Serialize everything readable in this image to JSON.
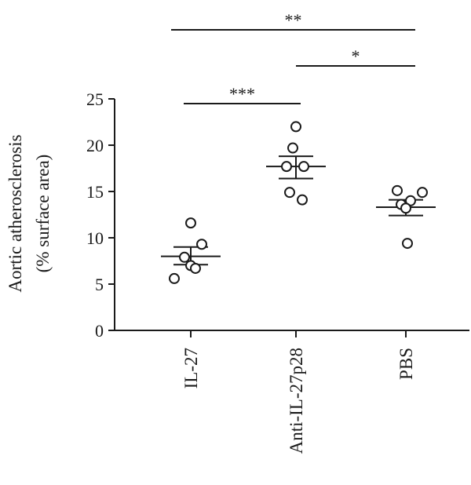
{
  "chart_data": {
    "type": "scatter",
    "ylabel_line1": "Aortic atherosclerosis",
    "ylabel_line2": "(% surface area)",
    "ylim": [
      0,
      25
    ],
    "yticks": [
      "0",
      "5",
      "10",
      "15",
      "20",
      "25"
    ],
    "categories": [
      "IL-27",
      "Anti-IL-27p28",
      "PBS"
    ],
    "groups": [
      {
        "category": "IL-27",
        "points": [
          11.6,
          9.3,
          7.9,
          7.0,
          6.7,
          5.6
        ],
        "mean": 8.0,
        "sem_low": 7.1,
        "sem_high": 9.0
      },
      {
        "category": "Anti-IL-27p28",
        "points": [
          22.0,
          19.7,
          17.7,
          17.7,
          14.9,
          14.1
        ],
        "mean": 17.7,
        "sem_low": 16.4,
        "sem_high": 18.8
      },
      {
        "category": "PBS",
        "points": [
          15.1,
          14.9,
          14.0,
          13.6,
          13.2,
          9.4
        ],
        "mean": 13.3,
        "sem_low": 12.4,
        "sem_high": 14.1
      }
    ],
    "significance": [
      {
        "from": "IL-27",
        "to": "Anti-IL-27p28",
        "label": "***"
      },
      {
        "from": "Anti-IL-27p28",
        "to": "PBS",
        "label": "*"
      },
      {
        "from": "IL-27",
        "to": "PBS",
        "label": "**"
      }
    ]
  }
}
